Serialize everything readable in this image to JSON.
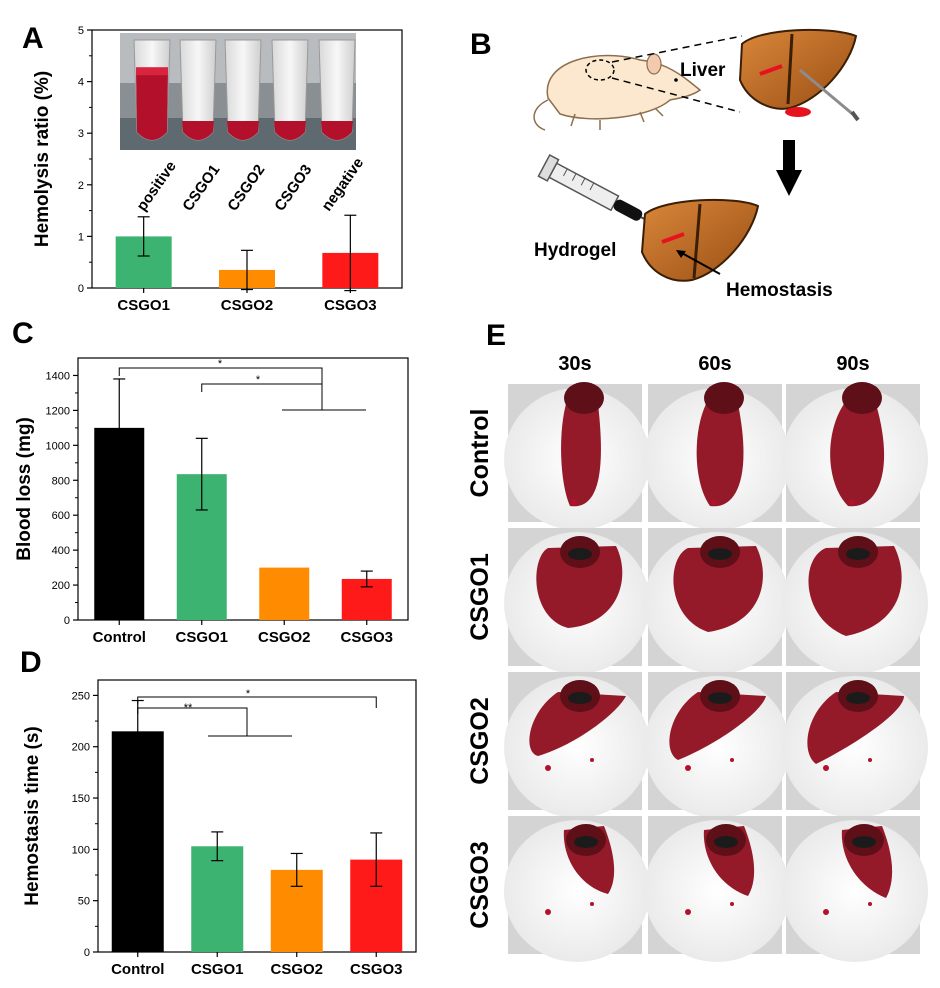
{
  "panels": {
    "A": "A",
    "B": "B",
    "C": "C",
    "D": "D",
    "E": "E"
  },
  "schematic": {
    "liver": "Liver",
    "hydrogel": "Hydrogel",
    "hemostasis": "Hemostasis"
  },
  "photos": {
    "tube_labels": [
      "positive",
      "CSGO1",
      "CSGO2",
      "CSGO3",
      "negative"
    ],
    "columns": [
      "30s",
      "60s",
      "90s"
    ],
    "rows": [
      "Control",
      "CSGO1",
      "CSGO2",
      "CSGO3"
    ]
  },
  "chart_data": [
    {
      "panel": "A",
      "type": "bar",
      "categories": [
        "CSGO1",
        "CSGO2",
        "CSGO3"
      ],
      "values": [
        1.0,
        0.35,
        0.68
      ],
      "errors": [
        0.38,
        0.38,
        0.73
      ],
      "colors": [
        "#3cb371",
        "#ff8c00",
        "#ff1a1a"
      ],
      "ylabel": "Hemolysis ratio (%)",
      "ylim": [
        0,
        5
      ],
      "yticks": [
        0,
        1,
        2,
        3,
        4,
        5
      ]
    },
    {
      "panel": "C",
      "type": "bar",
      "categories": [
        "Control",
        "CSGO1",
        "CSGO2",
        "CSGO3"
      ],
      "values": [
        1100,
        835,
        300,
        235
      ],
      "errors": [
        280,
        205,
        0,
        45
      ],
      "colors": [
        "#000000",
        "#3cb371",
        "#ff8c00",
        "#ff1a1a"
      ],
      "ylabel": "Blood loss (mg)",
      "ylim": [
        0,
        1500
      ],
      "yticks": [
        0,
        200,
        400,
        600,
        800,
        1000,
        1200,
        1400
      ],
      "significance": [
        "*",
        "*"
      ]
    },
    {
      "panel": "D",
      "type": "bar",
      "categories": [
        "Control",
        "CSGO1",
        "CSGO2",
        "CSGO3"
      ],
      "values": [
        215,
        103,
        80,
        90
      ],
      "errors": [
        30,
        14,
        16,
        26
      ],
      "colors": [
        "#000000",
        "#3cb371",
        "#ff8c00",
        "#ff1a1a"
      ],
      "ylabel": "Hemostasis time (s)",
      "ylim": [
        0,
        265
      ],
      "yticks": [
        0,
        50,
        100,
        150,
        200,
        250
      ],
      "significance": [
        "**",
        "*"
      ]
    }
  ]
}
